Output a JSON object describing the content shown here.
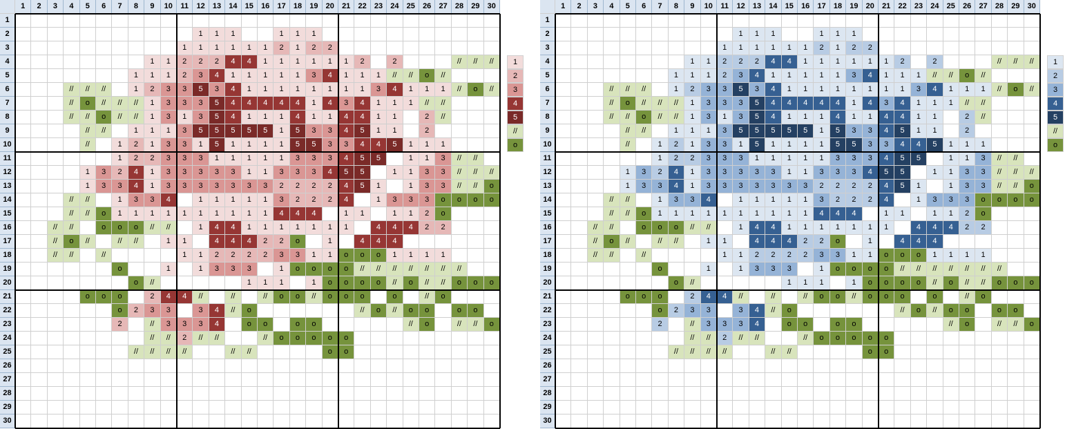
{
  "title": "",
  "col_headers": [
    "1",
    "2",
    "3",
    "4",
    "5",
    "6",
    "7",
    "8",
    "9",
    "10",
    "11",
    "12",
    "13",
    "14",
    "15",
    "16",
    "17",
    "18",
    "19",
    "20",
    "21",
    "22",
    "23",
    "24",
    "25",
    "26",
    "27",
    "28",
    "29",
    "30"
  ],
  "row_headers": [
    "1",
    "2",
    "3",
    "4",
    "5",
    "6",
    "7",
    "8",
    "9",
    "10",
    "11",
    "12",
    "13",
    "14",
    "15",
    "16",
    "17",
    "18",
    "19",
    "20",
    "21",
    "22",
    "23",
    "24",
    "25",
    "26",
    "27",
    "28",
    "29",
    "30"
  ],
  "pattern_rows": [
    "",
    "___________111__111",
    "__________1111112122",
    "________11222441111112_2___///",
    "_______1112341111134111//o/",
    "___///_12335341111111134111/o//",
    "___/o///13335444441434111//",
    "___//o//1313541114114411_2/",
    "____//_11135555515334511_2",
    "____/_121331511115533445111",
    "______12233311111333455_113//",
    "____132413333311333455_1133///",
    "____1334133333332222451_133//o/",
    "___//_1334_1111132224_1333oooo",
    "___//o1111111111444_11_112o",
    "__//_ooo//_1441111111_44422",
    "__/o/_//_11_44422o_1_444",
    "__//_/____1122223311ooo1111",
    "______o__1_1333_1oooo///////",
    "_______o/_____111_1oooo/o//ooo/",
    "____ooo_244/_/_/oo/ooo_o_/o",
    "______o233_34/o______/o/oo_oo",
    "______2_/3334_oo_oo_____/o_//o",
    "________//2//__/ooooo",
    "_______////__//____oo"
  ],
  "legend_symbols": [
    "1",
    "2",
    "3",
    "4",
    "5",
    "//",
    "o"
  ],
  "red_palette": {
    "1": "#f2dcdb",
    "2": "#e6b8b7",
    "3": "#da9694",
    "4": "#963634",
    "5": "#7a2a28",
    "/": "#d8e4bc",
    "o": "#76933c"
  },
  "blue_palette": {
    "1": "#dce6f1",
    "2": "#b8cce4",
    "3": "#95b3d7",
    "4": "#366092",
    "5": "#244062",
    "/": "#d8e4bc",
    "o": "#76933c"
  },
  "header_color": "#dbe5f1"
}
